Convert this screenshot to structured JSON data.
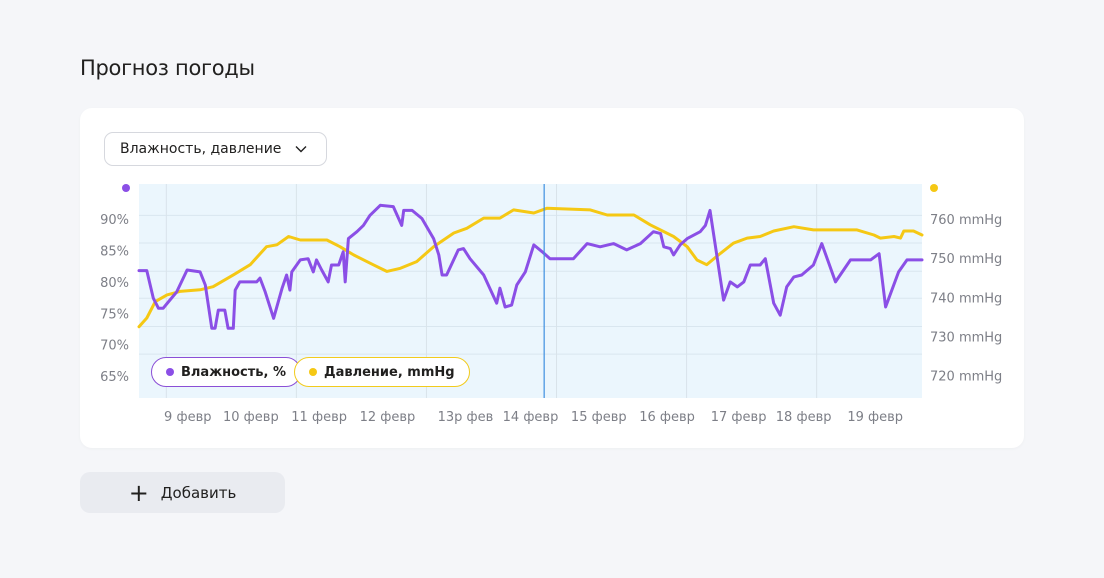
{
  "title": "Прогноз погоды",
  "dropdown": {
    "selected": "Влажность, давление"
  },
  "add_button": {
    "label": "Добавить",
    "icon": "plus-icon"
  },
  "legend": {
    "humidity": "Влажность, %",
    "pressure": "Давление, mmHg"
  },
  "colors": {
    "humidity": "#8b4fe6",
    "pressure": "#f5c814",
    "plot_bg": "#ebf6fd",
    "cursor": "#3d8fe0"
  },
  "chart_data": {
    "type": "line",
    "x_unit": "day of February",
    "xlim": [
      8.58,
      20.62
    ],
    "cursor_x": 14.81,
    "x_ticks": [
      {
        "x": 9.33,
        "label": "9 февр"
      },
      {
        "x": 10.3,
        "label": "10 февр"
      },
      {
        "x": 11.35,
        "label": "11 февр"
      },
      {
        "x": 12.4,
        "label": "12 февр"
      },
      {
        "x": 13.6,
        "label": "13р фев"
      },
      {
        "x": 14.6,
        "label": "14 февр"
      },
      {
        "x": 15.65,
        "label": "15 февр"
      },
      {
        "x": 16.7,
        "label": "16 февр"
      },
      {
        "x": 17.8,
        "label": "17 февр"
      },
      {
        "x": 18.8,
        "label": "18 февр"
      },
      {
        "x": 19.9,
        "label": "19 февр"
      }
    ],
    "x_grid": [
      9,
      11,
      13,
      15,
      17,
      19
    ],
    "y_left": {
      "ylim": [
        61.5,
        95.6
      ],
      "ticks": [
        {
          "v": 90,
          "label": "90%"
        },
        {
          "v": 85,
          "label": "85%"
        },
        {
          "v": 80,
          "label": "80%"
        },
        {
          "v": 75,
          "label": "75%"
        },
        {
          "v": 70,
          "label": "70%"
        },
        {
          "v": 65,
          "label": "65%"
        }
      ]
    },
    "y_right": {
      "ylim": [
        714.3,
        768.9
      ],
      "ticks": [
        {
          "v": 760,
          "label": "760 mmHg"
        },
        {
          "v": 750,
          "label": "750 mmHg"
        },
        {
          "v": 740,
          "label": "740 mmHg"
        },
        {
          "v": 730,
          "label": "730 mmHg"
        },
        {
          "v": 720,
          "label": "720 mmHg"
        }
      ]
    },
    "y_grid_humidity": [
      90.6,
      86.2,
      81.7,
      77.4,
      72.9,
      68.5
    ],
    "series": [
      {
        "name": "Влажность, %",
        "axis": "left",
        "points": [
          [
            8.58,
            81.8
          ],
          [
            8.7,
            81.8
          ],
          [
            8.8,
            77.4
          ],
          [
            8.88,
            75.8
          ],
          [
            8.95,
            75.8
          ],
          [
            9.03,
            76.8
          ],
          [
            9.16,
            78.4
          ],
          [
            9.32,
            81.9
          ],
          [
            9.52,
            81.6
          ],
          [
            9.6,
            79.5
          ],
          [
            9.7,
            72.6
          ],
          [
            9.75,
            72.6
          ],
          [
            9.8,
            75.5
          ],
          [
            9.9,
            75.5
          ],
          [
            9.95,
            72.6
          ],
          [
            10.03,
            72.6
          ],
          [
            10.06,
            78.7
          ],
          [
            10.13,
            80.0
          ],
          [
            10.39,
            80.0
          ],
          [
            10.44,
            80.6
          ],
          [
            10.52,
            78.4
          ],
          [
            10.65,
            74.2
          ],
          [
            10.78,
            79.0
          ],
          [
            10.85,
            81.1
          ],
          [
            10.9,
            78.7
          ],
          [
            10.93,
            81.6
          ],
          [
            11.06,
            83.5
          ],
          [
            11.18,
            83.7
          ],
          [
            11.26,
            81.6
          ],
          [
            11.31,
            83.5
          ],
          [
            11.39,
            81.9
          ],
          [
            11.49,
            80.0
          ],
          [
            11.54,
            82.7
          ],
          [
            11.65,
            82.7
          ],
          [
            11.72,
            84.8
          ],
          [
            11.75,
            80.0
          ],
          [
            11.8,
            86.9
          ],
          [
            11.93,
            88.0
          ],
          [
            12.03,
            89.0
          ],
          [
            12.13,
            90.6
          ],
          [
            12.29,
            92.2
          ],
          [
            12.49,
            92.0
          ],
          [
            12.62,
            89.0
          ],
          [
            12.65,
            91.4
          ],
          [
            12.78,
            91.4
          ],
          [
            12.93,
            90.1
          ],
          [
            13.11,
            86.9
          ],
          [
            13.19,
            84.3
          ],
          [
            13.24,
            81.1
          ],
          [
            13.31,
            81.1
          ],
          [
            13.49,
            85.1
          ],
          [
            13.57,
            85.3
          ],
          [
            13.67,
            83.7
          ],
          [
            13.88,
            81.1
          ],
          [
            14.08,
            76.6
          ],
          [
            14.13,
            79.0
          ],
          [
            14.21,
            76.0
          ],
          [
            14.31,
            76.3
          ],
          [
            14.39,
            79.5
          ],
          [
            14.52,
            81.6
          ],
          [
            14.65,
            85.9
          ],
          [
            14.78,
            84.8
          ],
          [
            14.9,
            83.7
          ],
          [
            15.26,
            83.7
          ],
          [
            15.47,
            86.1
          ],
          [
            15.67,
            85.6
          ],
          [
            15.88,
            86.1
          ],
          [
            16.08,
            85.1
          ],
          [
            16.29,
            86.1
          ],
          [
            16.49,
            88.0
          ],
          [
            16.6,
            87.7
          ],
          [
            16.65,
            85.6
          ],
          [
            16.75,
            85.3
          ],
          [
            16.8,
            84.3
          ],
          [
            16.9,
            85.9
          ],
          [
            17.01,
            86.9
          ],
          [
            17.21,
            88.0
          ],
          [
            17.29,
            89.0
          ],
          [
            17.36,
            91.4
          ],
          [
            17.57,
            77.1
          ],
          [
            17.67,
            80.0
          ],
          [
            17.78,
            79.2
          ],
          [
            17.88,
            80.0
          ],
          [
            17.98,
            82.7
          ],
          [
            18.13,
            82.7
          ],
          [
            18.21,
            83.7
          ],
          [
            18.34,
            76.6
          ],
          [
            18.44,
            74.7
          ],
          [
            18.54,
            79.2
          ],
          [
            18.65,
            80.8
          ],
          [
            18.77,
            81.1
          ],
          [
            18.95,
            82.7
          ],
          [
            19.08,
            86.1
          ],
          [
            19.29,
            80.0
          ],
          [
            19.52,
            83.5
          ],
          [
            19.83,
            83.5
          ],
          [
            19.96,
            84.5
          ],
          [
            20.06,
            76.0
          ],
          [
            20.26,
            81.6
          ],
          [
            20.39,
            83.5
          ],
          [
            20.62,
            83.5
          ]
        ]
      },
      {
        "name": "Давление, mmHg",
        "axis": "right",
        "points": [
          [
            8.58,
            732.5
          ],
          [
            8.7,
            734.7
          ],
          [
            8.83,
            738.9
          ],
          [
            9.01,
            740.6
          ],
          [
            9.21,
            741.5
          ],
          [
            9.52,
            741.9
          ],
          [
            9.72,
            742.7
          ],
          [
            10.03,
            745.7
          ],
          [
            10.29,
            748.3
          ],
          [
            10.54,
            752.9
          ],
          [
            10.7,
            753.4
          ],
          [
            10.88,
            755.5
          ],
          [
            11.06,
            754.6
          ],
          [
            11.47,
            754.6
          ],
          [
            11.67,
            752.9
          ],
          [
            11.88,
            750.8
          ],
          [
            12.18,
            748.3
          ],
          [
            12.39,
            746.6
          ],
          [
            12.6,
            747.4
          ],
          [
            12.85,
            749.1
          ],
          [
            13.11,
            752.9
          ],
          [
            13.42,
            756.4
          ],
          [
            13.62,
            757.6
          ],
          [
            13.88,
            760.2
          ],
          [
            14.13,
            760.2
          ],
          [
            14.34,
            762.3
          ],
          [
            14.65,
            761.5
          ],
          [
            14.85,
            762.7
          ],
          [
            15.52,
            762.3
          ],
          [
            15.78,
            761.0
          ],
          [
            16.19,
            761.0
          ],
          [
            16.44,
            758.5
          ],
          [
            16.8,
            755.5
          ],
          [
            17.01,
            752.9
          ],
          [
            17.16,
            749.5
          ],
          [
            17.31,
            748.3
          ],
          [
            17.52,
            751.2
          ],
          [
            17.72,
            753.8
          ],
          [
            17.93,
            755.1
          ],
          [
            18.13,
            755.5
          ],
          [
            18.34,
            756.9
          ],
          [
            18.65,
            758.0
          ],
          [
            18.95,
            757.2
          ],
          [
            19.62,
            757.2
          ],
          [
            19.88,
            755.9
          ],
          [
            19.98,
            755.1
          ],
          [
            20.19,
            755.5
          ],
          [
            20.29,
            755.1
          ],
          [
            20.34,
            756.9
          ],
          [
            20.49,
            756.9
          ],
          [
            20.62,
            755.9
          ]
        ]
      }
    ]
  }
}
